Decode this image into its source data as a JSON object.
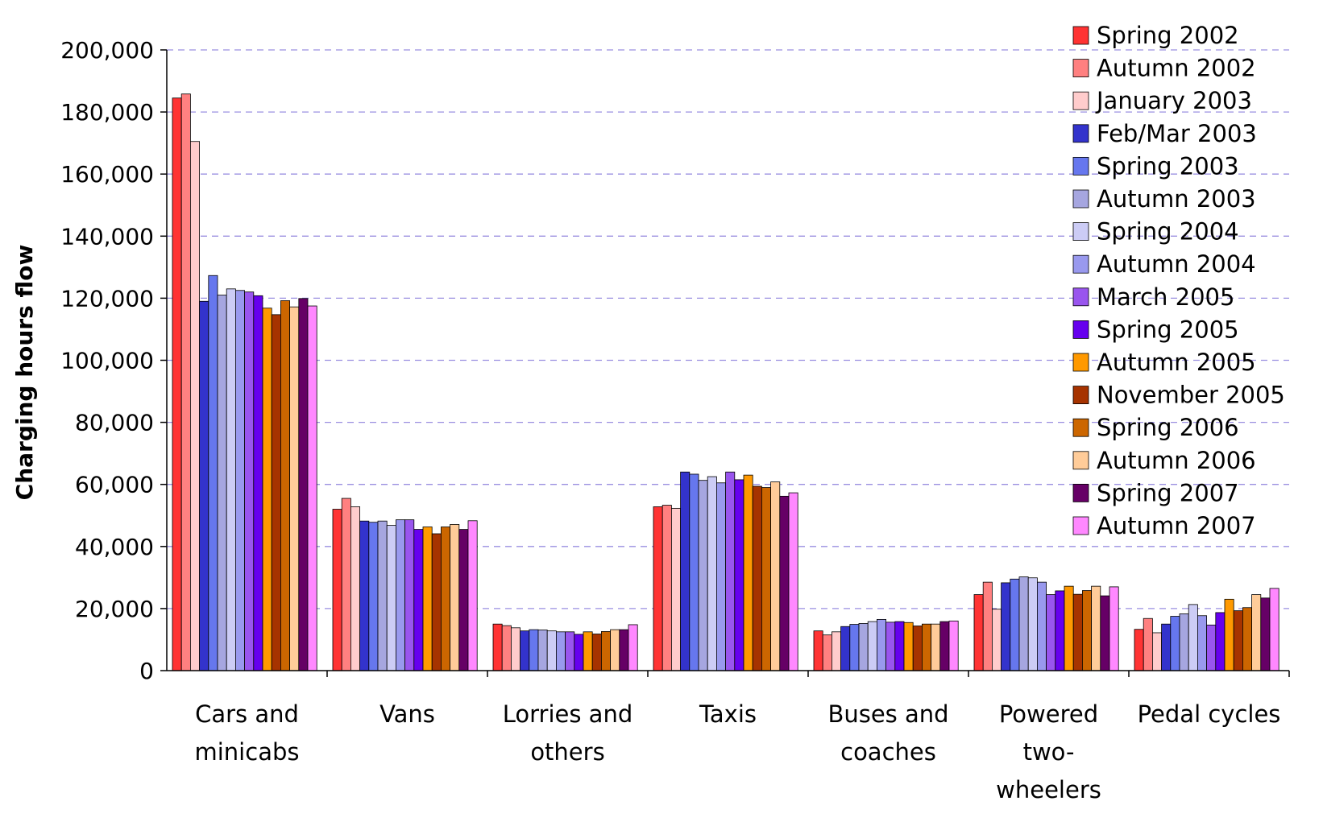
{
  "chart_data": {
    "type": "bar",
    "title": "",
    "xlabel": "",
    "ylabel": "Charging hours flow",
    "ylim": [
      0,
      200000
    ],
    "yticks": [
      0,
      20000,
      40000,
      60000,
      80000,
      100000,
      120000,
      140000,
      160000,
      180000,
      200000
    ],
    "ytick_labels": [
      "0",
      "20,000",
      "40,000",
      "60,000",
      "80,000",
      "100,000",
      "120,000",
      "140,000",
      "160,000",
      "180,000",
      "200,000"
    ],
    "grid": "horizontal dashed",
    "legend_position": "top-right",
    "categories": [
      [
        "Cars and",
        "minicabs"
      ],
      [
        "Vans"
      ],
      [
        "Lorries and",
        "others"
      ],
      [
        "Taxis"
      ],
      [
        "Buses and",
        "coaches"
      ],
      [
        "Powered",
        "two-",
        "wheelers"
      ],
      [
        "Pedal cycles"
      ]
    ],
    "series": [
      {
        "name": "Spring 2002",
        "color": "#ff3333",
        "values": [
          184500,
          52000,
          15000,
          52800,
          12800,
          24500,
          13300
        ]
      },
      {
        "name": "Autumn 2002",
        "color": "#ff8080",
        "values": [
          185800,
          55500,
          14500,
          53300,
          11500,
          28500,
          16800
        ]
      },
      {
        "name": "January 2003",
        "color": "#ffcccc",
        "values": [
          170500,
          52800,
          13800,
          52300,
          12500,
          19800,
          12200
        ]
      },
      {
        "name": "Feb/Mar 2003",
        "color": "#3333cc",
        "values": [
          119000,
          48200,
          12800,
          64000,
          14200,
          28300,
          15000
        ]
      },
      {
        "name": "Spring 2003",
        "color": "#6677ee",
        "values": [
          127300,
          47800,
          13200,
          63300,
          14900,
          29500,
          17500
        ]
      },
      {
        "name": "Autumn 2003",
        "color": "#a6a6e0",
        "values": [
          121000,
          48200,
          13100,
          61300,
          15200,
          30200,
          18300
        ]
      },
      {
        "name": "Spring 2004",
        "color": "#ccccf5",
        "values": [
          123000,
          46800,
          12800,
          62500,
          15800,
          29900,
          21300
        ]
      },
      {
        "name": "Autumn 2004",
        "color": "#9999ee",
        "values": [
          122500,
          48600,
          12500,
          60500,
          16500,
          28500,
          17700
        ]
      },
      {
        "name": "March 2005",
        "color": "#9955ee",
        "values": [
          122000,
          48600,
          12500,
          64000,
          15600,
          24500,
          14700
        ]
      },
      {
        "name": "Spring 2005",
        "color": "#6600ee",
        "values": [
          120800,
          45500,
          11700,
          61500,
          15800,
          25700,
          18700
        ]
      },
      {
        "name": "Autumn 2005",
        "color": "#ff9900",
        "values": [
          116800,
          46300,
          12500,
          63000,
          15500,
          27200,
          23000
        ]
      },
      {
        "name": "November 2005",
        "color": "#a63300",
        "values": [
          114700,
          44100,
          11800,
          59400,
          14400,
          24600,
          19300
        ]
      },
      {
        "name": "Spring 2006",
        "color": "#cc6600",
        "values": [
          119200,
          46300,
          12600,
          59000,
          15000,
          25800,
          20300
        ]
      },
      {
        "name": "Autumn 2006",
        "color": "#ffcc99",
        "values": [
          117200,
          47100,
          13200,
          60800,
          15000,
          27200,
          24500
        ]
      },
      {
        "name": "Spring 2007",
        "color": "#660066",
        "values": [
          119900,
          45500,
          13200,
          56200,
          15800,
          24100,
          23400
        ]
      },
      {
        "name": "Autumn 2007",
        "color": "#ff88ff",
        "values": [
          117500,
          48300,
          14800,
          57300,
          16000,
          27000,
          26500
        ]
      }
    ]
  }
}
